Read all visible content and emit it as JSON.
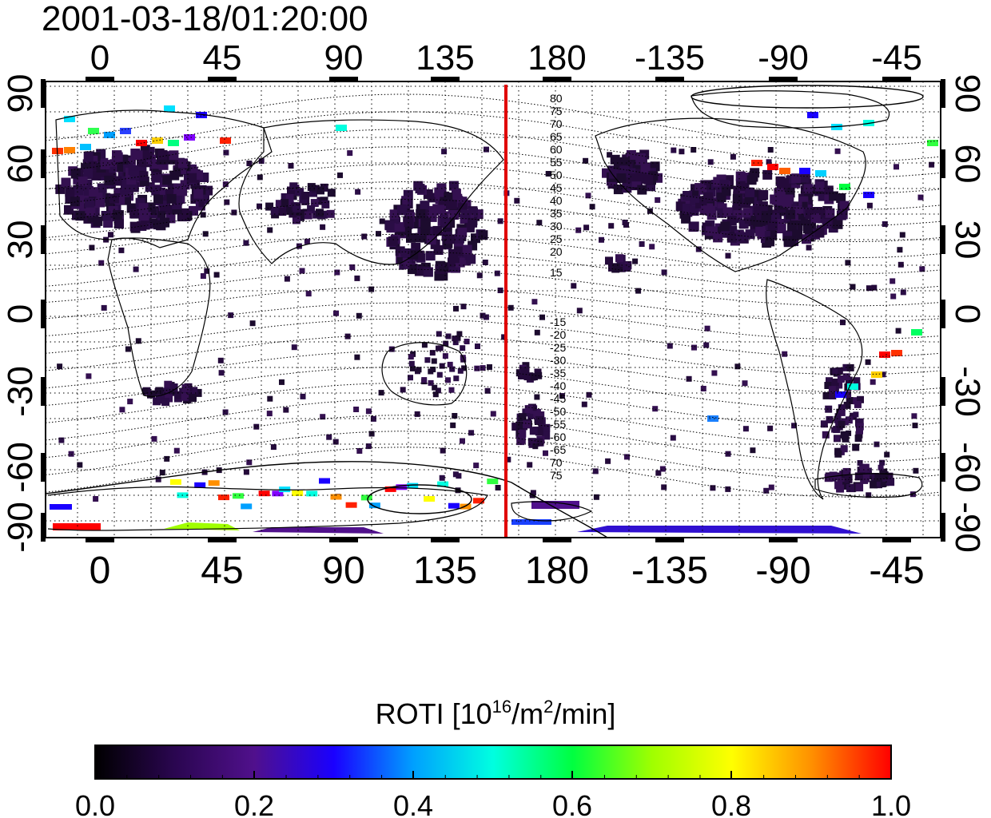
{
  "timestamp": "2001-03-18/01:20:00",
  "map": {
    "top_ticks": [
      "0",
      "45",
      "90",
      "135",
      "180",
      "-135",
      "-90",
      "-45"
    ],
    "bottom_ticks": [
      "0",
      "45",
      "90",
      "135",
      "180",
      "-135",
      "-90",
      "-45"
    ],
    "left_ticks": [
      "90",
      "60",
      "30",
      "0",
      "-30",
      "-60",
      "-90"
    ],
    "right_ticks": [
      "90",
      "60",
      "30",
      "0",
      "-30",
      "-60",
      "-90"
    ],
    "contour_labels_north": [
      "80",
      "75",
      "70",
      "65",
      "60",
      "55",
      "50",
      "45",
      "40",
      "35",
      "30",
      "25",
      "20",
      "15"
    ],
    "contour_labels_south": [
      "-15",
      "-20",
      "-25",
      "-30",
      "-35",
      "-40",
      "-45",
      "-50",
      "-55",
      "-60",
      "-65",
      "70",
      "75"
    ],
    "line_color": "#e00000"
  },
  "colorbar": {
    "title_main": "ROTI  [10",
    "title_sup1": "16",
    "title_mid": "/m",
    "title_sup2": "2",
    "title_end": "/min]",
    "tick_labels": [
      "0.0",
      "0.2",
      "0.4",
      "0.6",
      "0.8",
      "1.0"
    ],
    "range": [
      0.0,
      1.0
    ],
    "stops": [
      "#000000",
      "#2a0650",
      "#50108c",
      "#1a00ff",
      "#00a0ff",
      "#00ffe0",
      "#00ff40",
      "#a0ff00",
      "#ffff00",
      "#ff9000",
      "#ff0000"
    ]
  }
}
